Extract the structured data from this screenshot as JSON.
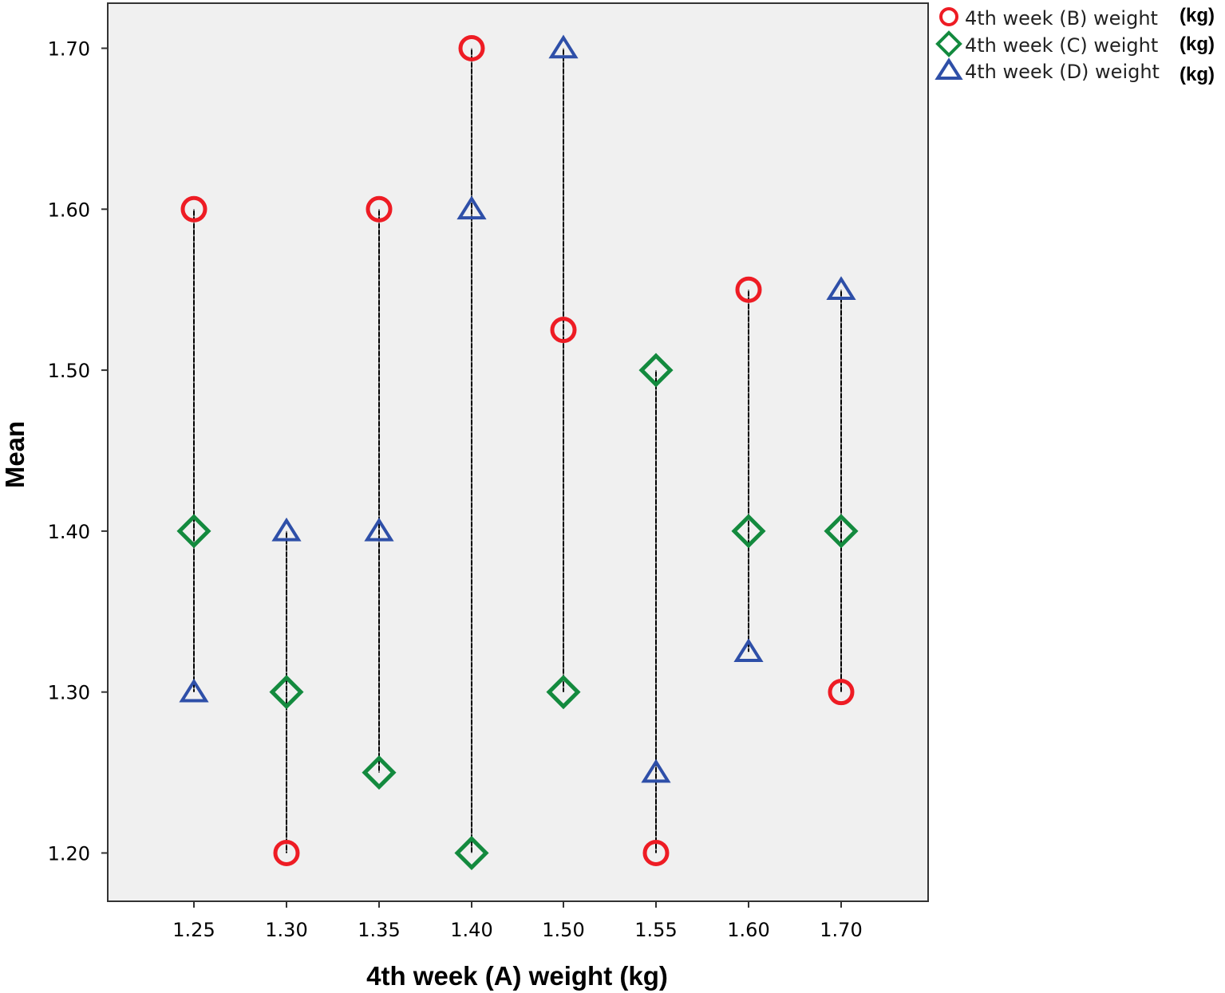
{
  "chart_data": {
    "type": "scatter",
    "title": "",
    "xlabel": "4th week (A) weight (kg)",
    "ylabel": "Mean",
    "categories": [
      "1.25",
      "1.30",
      "1.35",
      "1.40",
      "1.50",
      "1.55",
      "1.60",
      "1.70"
    ],
    "ylim": [
      1.17,
      1.728
    ],
    "yticks": [
      "1.20",
      "1.30",
      "1.40",
      "1.50",
      "1.60",
      "1.70"
    ],
    "grid": false,
    "legend_position": "top-right, outside plot",
    "series": [
      {
        "name": "4th week (B) weight",
        "unit": "(kg)",
        "marker": "circle",
        "color": "#ee1c24",
        "values": [
          1.6,
          1.2,
          1.6,
          1.7,
          1.525,
          1.2,
          1.55,
          1.3
        ]
      },
      {
        "name": "4th week (C) weight",
        "unit": "(kg)",
        "marker": "diamond",
        "color": "#138a3e",
        "values": [
          1.4,
          1.3,
          1.25,
          1.2,
          1.3,
          1.5,
          1.4,
          1.4
        ]
      },
      {
        "name": "4th week (D) weight",
        "unit": "(kg)",
        "marker": "triangle",
        "color": "#2e4fa8",
        "values": [
          1.3,
          1.4,
          1.4,
          1.6,
          1.7,
          1.25,
          1.325,
          1.55
        ]
      }
    ],
    "drop_lines": "dashed black vertical line from min to max at each category"
  }
}
